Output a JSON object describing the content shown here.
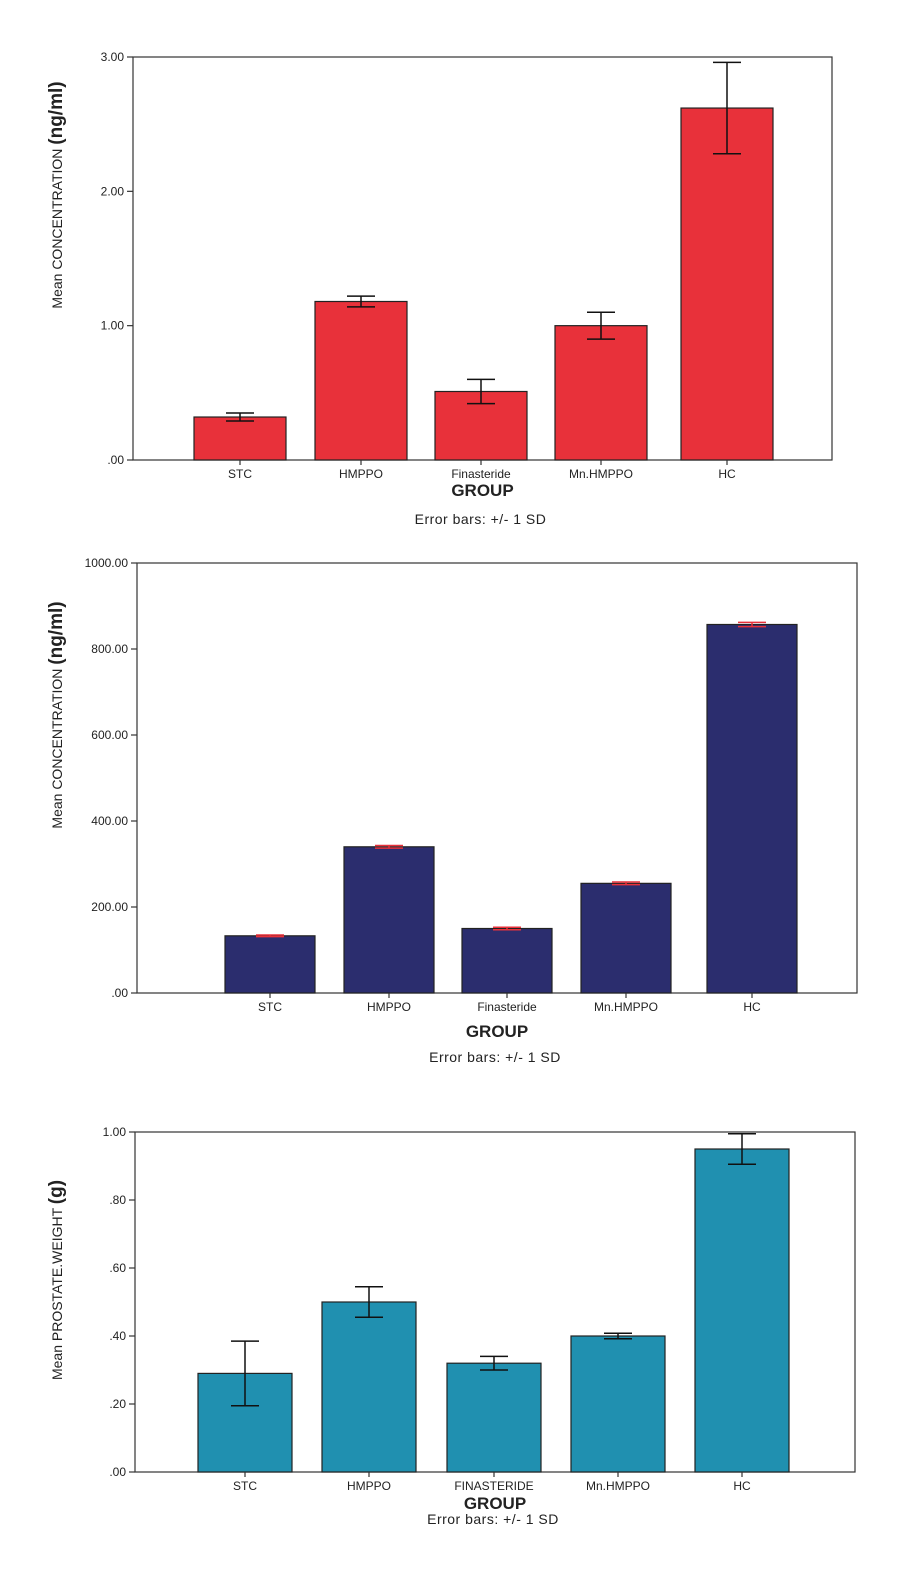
{
  "chart_data": [
    {
      "type": "bar",
      "categories": [
        "STC",
        "HMPPO",
        "Finasteride",
        "Mn.HMPPO",
        "HC"
      ],
      "values": [
        0.32,
        1.18,
        0.51,
        1.0,
        2.62
      ],
      "errors": [
        0.03,
        0.04,
        0.09,
        0.1,
        0.34
      ],
      "ylim": [
        0,
        3.0
      ],
      "yticks": [
        0,
        1,
        2,
        3
      ],
      "ytick_labels": [
        ".00",
        "1.00",
        "2.00",
        "3.00"
      ],
      "ylabel": "Mean CONCENTRATION",
      "ylabel_unit": "(ng/ml)",
      "xlabel": "GROUP",
      "note": "Error bars: +/- 1 SD",
      "bar_color": "#e8313a",
      "error_color": "#111111"
    },
    {
      "type": "bar",
      "categories": [
        "STC",
        "HMPPO",
        "Finasteride",
        "Mn.HMPPO",
        "HC"
      ],
      "values": [
        133,
        340,
        150,
        255,
        857
      ],
      "errors": [
        2,
        3,
        3,
        3,
        5
      ],
      "ylim": [
        0,
        1000
      ],
      "yticks": [
        0,
        200,
        400,
        600,
        800,
        1000
      ],
      "ytick_labels": [
        ".00",
        "200.00",
        "400.00",
        "600.00",
        "800.00",
        "1000.00"
      ],
      "ylabel": "Mean CONCENTRATION",
      "ylabel_unit": "(ng/ml)",
      "xlabel": "GROUP",
      "note": "Error bars: +/- 1 SD",
      "bar_color": "#2b2d6e",
      "error_color": "#e8313a"
    },
    {
      "type": "bar",
      "categories": [
        "STC",
        "HMPPO",
        "FINASTERIDE",
        "Mn.HMPPO",
        "HC"
      ],
      "values": [
        0.29,
        0.5,
        0.32,
        0.4,
        0.95
      ],
      "errors": [
        0.095,
        0.045,
        0.02,
        0.008,
        0.045
      ],
      "ylim": [
        0,
        1.0
      ],
      "yticks": [
        0,
        0.2,
        0.4,
        0.6,
        0.8,
        1.0
      ],
      "ytick_labels": [
        ".00",
        ".20",
        ".40",
        ".60",
        ".80",
        "1.00"
      ],
      "ylabel": "Mean PROSTATE.WEIGHT",
      "ylabel_unit": "(g)",
      "xlabel": "GROUP",
      "note": "Error bars: +/- 1 SD",
      "bar_color": "#2090b0",
      "error_color": "#111111"
    }
  ]
}
